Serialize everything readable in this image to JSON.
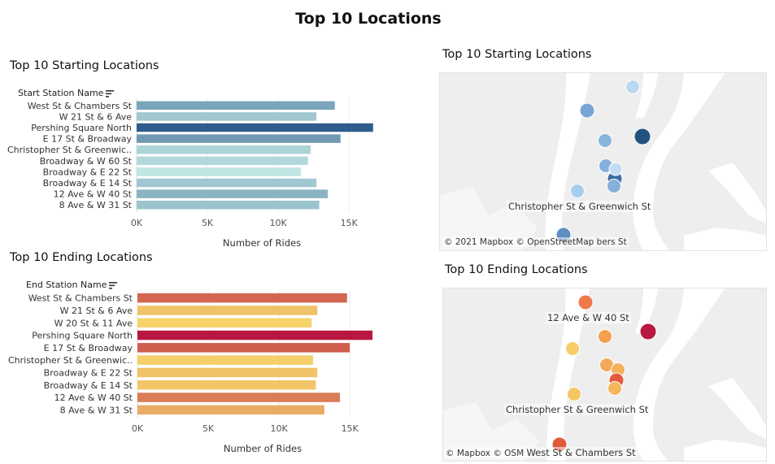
{
  "dashboard": {
    "title": "Top 10 Locations"
  },
  "chart_data": [
    {
      "type": "bar",
      "orientation": "horizontal",
      "title": "Top 10 Starting Locations",
      "field_label": "Start Station Name",
      "xlabel": "Number of Rides",
      "categories": [
        "West St & Chambers St",
        "W 21 St & 6 Ave",
        "Pershing Square North",
        "E 17 St & Broadway",
        "Christopher St & Greenwic..",
        "Broadway & W 60 St",
        "Broadway & E 22 St",
        "Broadway & E 14 St",
        "12 Ave & W 40 St",
        "8 Ave & W 31 St"
      ],
      "values": [
        14000,
        12700,
        16700,
        14400,
        12300,
        12100,
        11600,
        12700,
        13500,
        12900
      ],
      "xlim": [
        0,
        17000
      ],
      "xticks": [
        0,
        5000,
        10000,
        15000
      ],
      "xtick_labels": [
        "0K",
        "5K",
        "10K",
        "15K"
      ],
      "color_scale": [
        "#c0e6e4",
        "#2e5c8c"
      ]
    },
    {
      "type": "bar",
      "orientation": "horizontal",
      "title": "Top 10 Ending Locations",
      "field_label": "End Station Name",
      "xlabel": "Number of Rides",
      "categories": [
        "West St & Chambers St",
        "W 21 St & 6 Ave",
        "W 20 St & 11 Ave",
        "Pershing Square North",
        "E 17 St & Broadway",
        "Christopher St & Greenwic..",
        "Broadway & E 22 St",
        "Broadway & E 14 St",
        "12 Ave & W 40 St",
        "8 Ave & W 31 St"
      ],
      "values": [
        14800,
        12700,
        12300,
        16600,
        15000,
        12400,
        12700,
        12600,
        14300,
        13200
      ],
      "xlim": [
        0,
        17000
      ],
      "xticks": [
        0,
        5000,
        10000,
        15000
      ],
      "xtick_labels": [
        "0K",
        "5K",
        "10K",
        "15K"
      ],
      "color_scale": [
        "#f6d36b",
        "#b8183f"
      ]
    }
  ],
  "maps": {
    "start": {
      "title": "Top 10 Starting Locations",
      "attribution": "© 2021 Mapbox © OpenStreetMap",
      "labels": [
        "Christopher St & Greenwich St",
        "bers St"
      ]
    },
    "end": {
      "title": "Top 10 Ending Locations",
      "attribution": "© Mapbox © OSM",
      "labels": [
        "12 Ave & W 40 St",
        "Christopher St & Greenwich St",
        "West St & Chambers St"
      ]
    }
  }
}
